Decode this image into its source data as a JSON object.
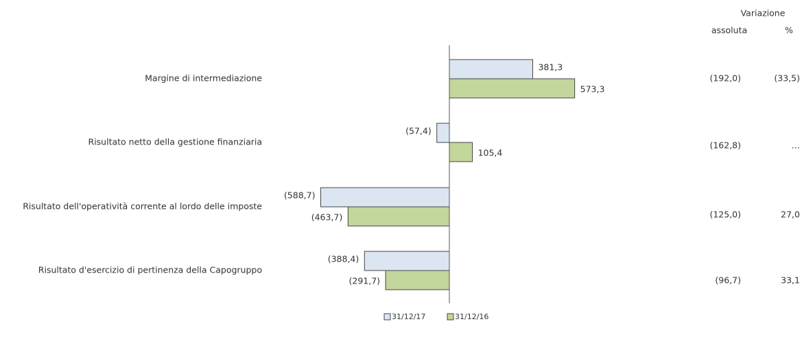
{
  "chart_data": {
    "type": "bar",
    "orientation": "horizontal",
    "categories": [
      "Margine di intermediazione",
      "Risultato netto della gestione finanziaria",
      "Risultato dell'operatività corrente al lordo delle imposte",
      "Risultato d'esercizio di pertinenza della Capogruppo"
    ],
    "series": [
      {
        "name": "31/12/17",
        "color": "#dce6f2",
        "values": [
          381.3,
          -57.4,
          -588.7,
          -388.4
        ],
        "value_labels": [
          "381,3",
          "(57,4)",
          "(588,7)",
          "(388,4)"
        ]
      },
      {
        "name": "31/12/16",
        "color": "#c3d69b",
        "values": [
          573.3,
          105.4,
          -463.7,
          -291.7
        ],
        "value_labels": [
          "573,3",
          "105,4",
          "(463,7)",
          "(291,7)"
        ]
      }
    ],
    "xlim": [
      -700,
      700
    ],
    "legend": "bottom",
    "table": {
      "header": "Variazione",
      "columns": [
        "assoluta",
        "%"
      ],
      "rows": [
        [
          "(192,0)",
          "(33,5)"
        ],
        [
          "(162,8)",
          "…"
        ],
        [
          "(125,0)",
          "27,0"
        ],
        [
          "(96,7)",
          "33,1"
        ]
      ]
    }
  }
}
